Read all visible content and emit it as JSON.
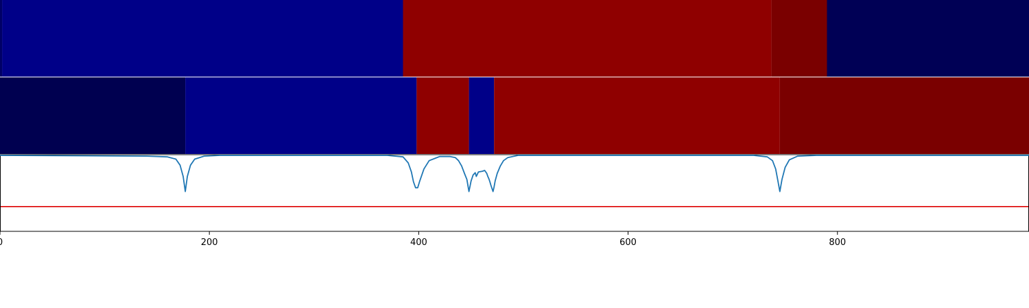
{
  "chart_data": {
    "type": "heatmap",
    "title": "",
    "xlabel": "",
    "ylabel": "",
    "xlim": [
      0,
      983
    ],
    "xticks": [
      0,
      200,
      400,
      600,
      800
    ],
    "tick_labels": [
      "0",
      "200",
      "400",
      "600",
      "800"
    ],
    "grid": false,
    "tracks": [
      {
        "segments": [
          {
            "start": 0,
            "end": 2,
            "color": "#000066"
          },
          {
            "start": 2,
            "end": 385,
            "color": "#000088"
          },
          {
            "start": 385,
            "end": 737,
            "color": "#8f0000"
          },
          {
            "start": 737,
            "end": 790,
            "color": "#7a0000"
          },
          {
            "start": 790,
            "end": 983,
            "color": "#000055"
          }
        ]
      },
      {
        "segments": [
          {
            "start": 0,
            "end": 177,
            "color": "#000050"
          },
          {
            "start": 177,
            "end": 398,
            "color": "#000088"
          },
          {
            "start": 398,
            "end": 448,
            "color": "#8f0000"
          },
          {
            "start": 448,
            "end": 472,
            "color": "#000088"
          },
          {
            "start": 472,
            "end": 745,
            "color": "#8f0000"
          },
          {
            "start": 745,
            "end": 983,
            "color": "#7a0000"
          }
        ]
      }
    ],
    "signal": {
      "color": "#1f77b4",
      "ylim": [
        0,
        1
      ],
      "threshold": 0.32,
      "threshold_color": "#dd0000",
      "points": [
        [
          0,
          1.0
        ],
        [
          140,
          0.99
        ],
        [
          160,
          0.98
        ],
        [
          168,
          0.95
        ],
        [
          172,
          0.87
        ],
        [
          175,
          0.72
        ],
        [
          177,
          0.52
        ],
        [
          179,
          0.72
        ],
        [
          182,
          0.87
        ],
        [
          186,
          0.95
        ],
        [
          195,
          0.99
        ],
        [
          210,
          1.0
        ],
        [
          370,
          1.0
        ],
        [
          385,
          0.98
        ],
        [
          390,
          0.9
        ],
        [
          393,
          0.78
        ],
        [
          395,
          0.65
        ],
        [
          397,
          0.57
        ],
        [
          399,
          0.57
        ],
        [
          401,
          0.66
        ],
        [
          405,
          0.82
        ],
        [
          410,
          0.93
        ],
        [
          420,
          0.985
        ],
        [
          430,
          0.985
        ],
        [
          435,
          0.97
        ],
        [
          438,
          0.93
        ],
        [
          441,
          0.86
        ],
        [
          444,
          0.75
        ],
        [
          446,
          0.68
        ],
        [
          448,
          0.52
        ],
        [
          450,
          0.66
        ],
        [
          452,
          0.74
        ],
        [
          454,
          0.77
        ],
        [
          455,
          0.72
        ],
        [
          457,
          0.78
        ],
        [
          461,
          0.79
        ],
        [
          463,
          0.8
        ],
        [
          465,
          0.76
        ],
        [
          466,
          0.72
        ],
        [
          467,
          0.69
        ],
        [
          468,
          0.65
        ],
        [
          469,
          0.6
        ],
        [
          471,
          0.52
        ],
        [
          472,
          0.58
        ],
        [
          473,
          0.66
        ],
        [
          475,
          0.76
        ],
        [
          478,
          0.86
        ],
        [
          481,
          0.93
        ],
        [
          485,
          0.97
        ],
        [
          495,
          1.0
        ],
        [
          720,
          1.0
        ],
        [
          733,
          0.98
        ],
        [
          738,
          0.93
        ],
        [
          741,
          0.82
        ],
        [
          743,
          0.67
        ],
        [
          745,
          0.52
        ],
        [
          747,
          0.68
        ],
        [
          750,
          0.84
        ],
        [
          754,
          0.94
        ],
        [
          762,
          0.99
        ],
        [
          780,
          1.0
        ],
        [
          983,
          1.0
        ]
      ]
    }
  }
}
